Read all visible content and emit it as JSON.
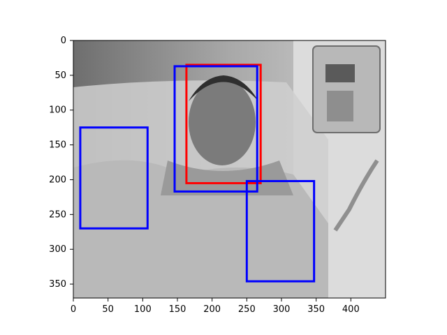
{
  "figure": {
    "image_description_kind": "grayscale hospital bed photo",
    "x_range": [
      0,
      450
    ],
    "y_range": [
      0,
      370
    ],
    "x_ticks": [
      0,
      50,
      100,
      150,
      200,
      250,
      300,
      350,
      400
    ],
    "y_ticks": [
      0,
      50,
      100,
      150,
      200,
      250,
      300,
      350
    ],
    "x_tick_labels": [
      "0",
      "50",
      "100",
      "150",
      "200",
      "250",
      "300",
      "350",
      "400"
    ],
    "y_tick_labels": [
      "0",
      "50",
      "100",
      "150",
      "200",
      "250",
      "300",
      "350"
    ]
  },
  "boxes": [
    {
      "label": "red",
      "color": "#ff0000",
      "x0": 163,
      "y0": 35,
      "x1": 270,
      "y1": 205
    },
    {
      "label": "blue",
      "color": "#0000ff",
      "x0": 146,
      "y0": 37,
      "x1": 265,
      "y1": 217
    },
    {
      "label": "blue",
      "color": "#0000ff",
      "x0": 10,
      "y0": 125,
      "x1": 107,
      "y1": 270
    },
    {
      "label": "blue",
      "color": "#0000ff",
      "x0": 250,
      "y0": 202,
      "x1": 347,
      "y1": 346
    }
  ]
}
